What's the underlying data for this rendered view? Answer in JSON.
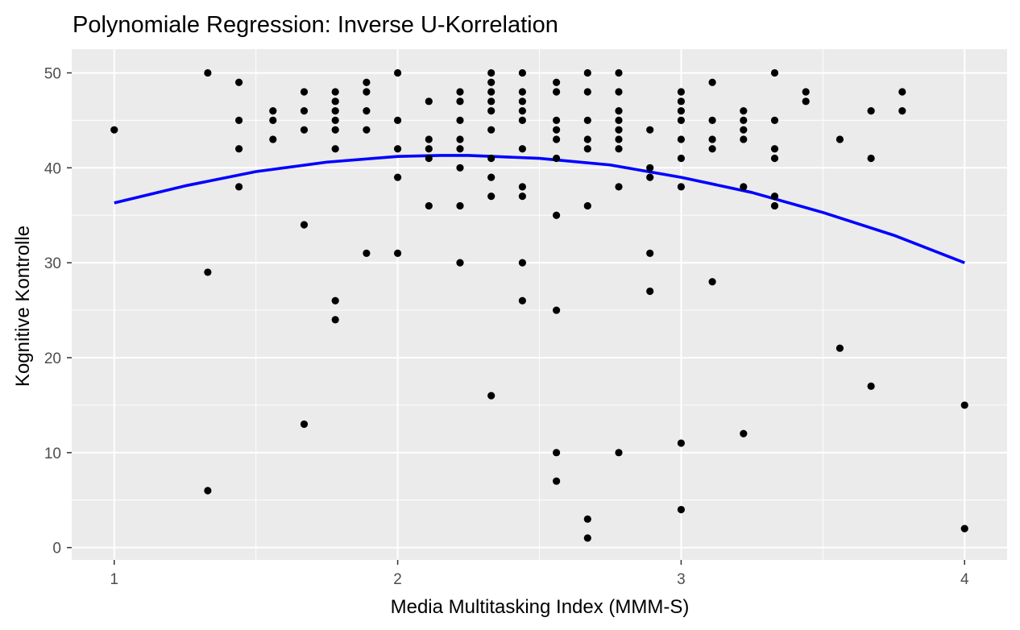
{
  "chart_data": {
    "type": "scatter",
    "title": "Polynomiale Regression: Inverse U-Korrelation",
    "xlabel": "Media Multitasking Index (MMM-S)",
    "ylabel": "Kognitive Kontrolle",
    "xlim": [
      0.85,
      4.15
    ],
    "ylim": [
      -1.3,
      52.5
    ],
    "x_ticks": [
      1,
      2,
      3,
      4
    ],
    "x_tick_labels": [
      "1",
      "2",
      "3",
      "4"
    ],
    "y_ticks": [
      0,
      10,
      20,
      30,
      40,
      50
    ],
    "y_tick_labels": [
      "0",
      "10",
      "20",
      "30",
      "40",
      "50"
    ],
    "grid": true,
    "colors": {
      "panel_background": "#ebebeb",
      "grid": "#ffffff",
      "points": "#000000",
      "fit_line": "#0000ff"
    },
    "series": [
      {
        "kind": "points",
        "points": [
          [
            1.0,
            44
          ],
          [
            1.33,
            50
          ],
          [
            1.33,
            29
          ],
          [
            1.33,
            6
          ],
          [
            1.44,
            49
          ],
          [
            1.44,
            45
          ],
          [
            1.44,
            42
          ],
          [
            1.44,
            38
          ],
          [
            1.56,
            46
          ],
          [
            1.56,
            45
          ],
          [
            1.56,
            43
          ],
          [
            1.67,
            48
          ],
          [
            1.67,
            46
          ],
          [
            1.67,
            44
          ],
          [
            1.67,
            34
          ],
          [
            1.67,
            13
          ],
          [
            1.78,
            48
          ],
          [
            1.78,
            47
          ],
          [
            1.78,
            46
          ],
          [
            1.78,
            45
          ],
          [
            1.78,
            44
          ],
          [
            1.78,
            42
          ],
          [
            1.78,
            26
          ],
          [
            1.78,
            24
          ],
          [
            1.89,
            49
          ],
          [
            1.89,
            48
          ],
          [
            1.89,
            46
          ],
          [
            1.89,
            44
          ],
          [
            1.89,
            31
          ],
          [
            2.0,
            50
          ],
          [
            2.0,
            45
          ],
          [
            2.0,
            42
          ],
          [
            2.0,
            39
          ],
          [
            2.0,
            31
          ],
          [
            2.11,
            47
          ],
          [
            2.11,
            43
          ],
          [
            2.11,
            42
          ],
          [
            2.11,
            41
          ],
          [
            2.11,
            36
          ],
          [
            2.22,
            48
          ],
          [
            2.22,
            47
          ],
          [
            2.22,
            45
          ],
          [
            2.22,
            43
          ],
          [
            2.22,
            42
          ],
          [
            2.22,
            40
          ],
          [
            2.22,
            36
          ],
          [
            2.22,
            30
          ],
          [
            2.33,
            50
          ],
          [
            2.33,
            49
          ],
          [
            2.33,
            48
          ],
          [
            2.33,
            47
          ],
          [
            2.33,
            46
          ],
          [
            2.33,
            44
          ],
          [
            2.33,
            41
          ],
          [
            2.33,
            39
          ],
          [
            2.33,
            37
          ],
          [
            2.33,
            16
          ],
          [
            2.44,
            50
          ],
          [
            2.44,
            48
          ],
          [
            2.44,
            47
          ],
          [
            2.44,
            46
          ],
          [
            2.44,
            45
          ],
          [
            2.44,
            42
          ],
          [
            2.44,
            38
          ],
          [
            2.44,
            37
          ],
          [
            2.44,
            30
          ],
          [
            2.44,
            26
          ],
          [
            2.56,
            49
          ],
          [
            2.56,
            48
          ],
          [
            2.56,
            45
          ],
          [
            2.56,
            44
          ],
          [
            2.56,
            43
          ],
          [
            2.56,
            41
          ],
          [
            2.56,
            35
          ],
          [
            2.56,
            25
          ],
          [
            2.56,
            10
          ],
          [
            2.56,
            7
          ],
          [
            2.67,
            50
          ],
          [
            2.67,
            48
          ],
          [
            2.67,
            45
          ],
          [
            2.67,
            43
          ],
          [
            2.67,
            42
          ],
          [
            2.67,
            36
          ],
          [
            2.67,
            3
          ],
          [
            2.67,
            1
          ],
          [
            2.78,
            50
          ],
          [
            2.78,
            48
          ],
          [
            2.78,
            46
          ],
          [
            2.78,
            45
          ],
          [
            2.78,
            44
          ],
          [
            2.78,
            43
          ],
          [
            2.78,
            42
          ],
          [
            2.78,
            38
          ],
          [
            2.78,
            10
          ],
          [
            2.89,
            44
          ],
          [
            2.89,
            40
          ],
          [
            2.89,
            39
          ],
          [
            2.89,
            31
          ],
          [
            2.89,
            27
          ],
          [
            3.0,
            48
          ],
          [
            3.0,
            47
          ],
          [
            3.0,
            46
          ],
          [
            3.0,
            45
          ],
          [
            3.0,
            43
          ],
          [
            3.0,
            41
          ],
          [
            3.0,
            38
          ],
          [
            3.0,
            11
          ],
          [
            3.0,
            4
          ],
          [
            3.11,
            49
          ],
          [
            3.11,
            45
          ],
          [
            3.11,
            43
          ],
          [
            3.11,
            42
          ],
          [
            3.11,
            28
          ],
          [
            3.22,
            46
          ],
          [
            3.22,
            45
          ],
          [
            3.22,
            44
          ],
          [
            3.22,
            43
          ],
          [
            3.22,
            38
          ],
          [
            3.22,
            12
          ],
          [
            3.33,
            50
          ],
          [
            3.33,
            45
          ],
          [
            3.33,
            42
          ],
          [
            3.33,
            41
          ],
          [
            3.33,
            37
          ],
          [
            3.33,
            36
          ],
          [
            3.44,
            48
          ],
          [
            3.44,
            47
          ],
          [
            3.56,
            43
          ],
          [
            3.56,
            21
          ],
          [
            3.67,
            46
          ],
          [
            3.67,
            41
          ],
          [
            3.67,
            17
          ],
          [
            3.78,
            48
          ],
          [
            3.78,
            46
          ],
          [
            4.0,
            15
          ],
          [
            4.0,
            2
          ]
        ]
      },
      {
        "kind": "line",
        "curve": [
          [
            1.0,
            36.3
          ],
          [
            1.25,
            38.1
          ],
          [
            1.5,
            39.6
          ],
          [
            1.75,
            40.6
          ],
          [
            2.0,
            41.2
          ],
          [
            2.15,
            41.3
          ],
          [
            2.25,
            41.3
          ],
          [
            2.5,
            41.0
          ],
          [
            2.75,
            40.3
          ],
          [
            3.0,
            39.0
          ],
          [
            3.25,
            37.4
          ],
          [
            3.5,
            35.3
          ],
          [
            3.75,
            32.9
          ],
          [
            4.0,
            30.0
          ]
        ]
      }
    ]
  }
}
